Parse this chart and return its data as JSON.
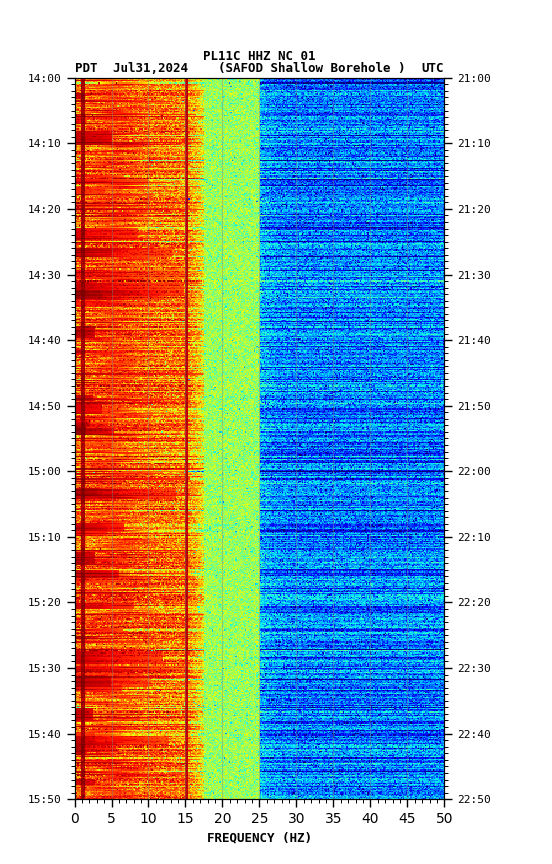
{
  "title_line1": "PL11C HHZ NC 01",
  "title_line2": "Jul31,2024    (SAFOD Shallow Borehole )",
  "label_left": "PDT",
  "label_right": "UTC",
  "xlabel": "FREQUENCY (HZ)",
  "freq_min": 0,
  "freq_max": 50,
  "yticks_pdt": [
    "14:00",
    "14:10",
    "14:20",
    "14:30",
    "14:40",
    "14:50",
    "15:00",
    "15:10",
    "15:20",
    "15:30",
    "15:40",
    "15:50"
  ],
  "yticks_utc": [
    "21:00",
    "21:10",
    "21:20",
    "21:30",
    "21:40",
    "21:50",
    "22:00",
    "22:10",
    "22:20",
    "22:30",
    "22:40",
    "22:50"
  ],
  "xticks": [
    0,
    5,
    10,
    15,
    20,
    25,
    30,
    35,
    40,
    45,
    50
  ],
  "vertical_lines_freq": [
    5,
    10,
    15,
    20,
    25,
    30,
    35,
    40,
    45
  ],
  "fig_width": 5.52,
  "fig_height": 8.64,
  "dpi": 100,
  "n_freq": 300,
  "n_time": 660,
  "colormap": "jet",
  "total_minutes": 110,
  "seed": 42
}
